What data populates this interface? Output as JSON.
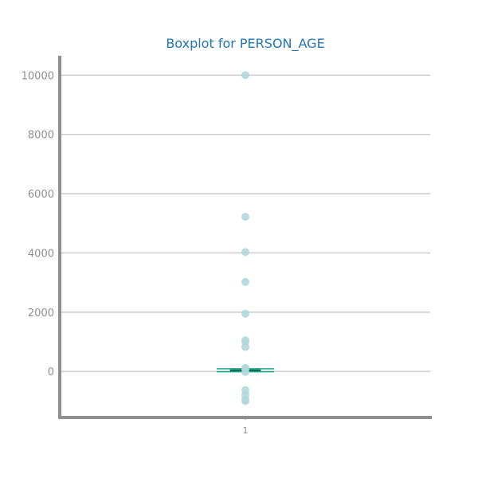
{
  "chart_data": {
    "type": "box",
    "title": "Boxplot for PERSON_AGE",
    "xlabel": "",
    "ylabel": "",
    "categories": [
      "1"
    ],
    "ylim": [
      -1500,
      10600
    ],
    "yticks": [
      10000,
      8000,
      6000,
      4000,
      2000,
      0
    ],
    "ytick_labels": [
      "10000",
      "8000",
      "6000",
      "4000",
      "2000",
      "0"
    ],
    "grid": "horizontal",
    "box": {
      "whisker_low": -10,
      "q1": 20,
      "median": 35,
      "q3": 55,
      "whisker_high": 90
    },
    "outliers": [
      10000,
      5220,
      4030,
      3020,
      1950,
      1050,
      1000,
      830,
      120,
      100,
      -20,
      -630,
      -800,
      -950,
      -1000
    ],
    "colors": {
      "title": "#1f77b4",
      "outlier": "#b0d8dc",
      "box": "#17a589",
      "median": "#0e6655",
      "grid": "#cccccc",
      "axis": "#8f8f8f"
    }
  }
}
